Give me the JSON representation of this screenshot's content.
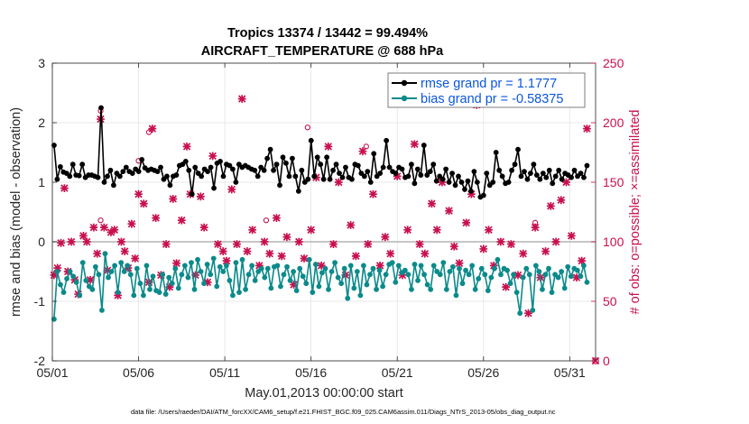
{
  "chart_data": {
    "type": "line",
    "title": "Tropics 13374 / 13442 = 99.494%",
    "subtitle": "AIRCRAFT_TEMPERATURE @ 688 hPa",
    "xlabel": "May.01,2013 00:00:00 start",
    "ylabel": "rmse and bias (model - observation)",
    "ylabel_right": "# of obs: o=possible; ×=assimilated",
    "xlim": [
      0,
      31.5
    ],
    "ylim": [
      -2,
      3
    ],
    "ylim_right": [
      0,
      250
    ],
    "x_ticks": [
      0,
      5,
      10,
      15,
      20,
      25,
      30
    ],
    "x_tick_labels": [
      "05/01",
      "05/06",
      "05/11",
      "05/16",
      "05/21",
      "05/26",
      "05/31"
    ],
    "y_ticks": [
      -2,
      -1,
      0,
      1,
      2,
      3
    ],
    "y_tick_labels": [
      "-2",
      "-1",
      "0",
      "1",
      "2",
      "3"
    ],
    "y_ticks_right": [
      0,
      50,
      100,
      150,
      200,
      250
    ],
    "y_tick_labels_right": [
      "0",
      "50",
      "100",
      "150",
      "200",
      "250"
    ],
    "zero_line": 0,
    "grid": true,
    "legend_location": "top-right",
    "footer": "data file: /Users/raeder/DAI/ATM_forcXX/CAM6_setup/f.e21.FHIST_BGC.f09_025.CAM6assim.011/Diags_NTrS_2013-05/obs_diag_output.nc",
    "colors": {
      "rmse": "#000000",
      "bias": "#0b8a8a",
      "obs": "#c8104f",
      "zero": "#b3b3b3",
      "legend_text": "#0a56e0"
    },
    "series": [
      {
        "name": "rmse grand pr = 1.1777",
        "values": [
          1.62,
          1.05,
          1.26,
          1.17,
          1.15,
          1.1,
          1.3,
          1.12,
          1.11,
          1.3,
          1.08,
          1.12,
          1.12,
          1.1,
          1.08,
          2.25,
          1.0,
          1.1,
          1.2,
          0.95,
          1.15,
          1.1,
          1.18,
          1.25,
          1.18,
          1.15,
          1.22,
          1.18,
          1.38,
          1.24,
          1.2,
          1.22,
          1.2,
          1.18,
          1.25,
          1.05,
          1.1,
          0.95,
          1.1,
          1.12,
          1.28,
          1.3,
          1.35,
          1.2,
          0.8,
          1.25,
          1.15,
          1.1,
          1.22,
          1.18,
          1.25,
          0.9,
          1.32,
          1.35,
          1.1,
          1.3,
          1.28,
          1.22,
          1.0,
          1.3,
          1.25,
          1.28,
          1.25,
          1.22,
          1.2,
          1.1,
          1.25,
          1.2,
          1.4,
          1.55,
          1.2,
          1.3,
          0.95,
          1.42,
          1.32,
          1.1,
          1.4,
          1.1,
          0.85,
          1.2,
          1.0,
          1.05,
          1.7,
          1.1,
          1.42,
          1.3,
          1.05,
          1.42,
          1.05,
          1.2,
          1.3,
          1.15,
          1.08,
          1.25,
          1.08,
          1.05,
          1.3,
          1.28,
          1.15,
          1.1,
          1.18,
          1.0,
          1.48,
          1.1,
          1.15,
          1.25,
          1.7,
          1.25,
          1.18,
          1.15,
          1.25,
          1.22,
          1.08,
          1.1,
          1.3,
          0.98,
          1.22,
          1.12,
          1.62,
          1.12,
          1.18,
          1.3,
          1.02,
          1.1,
          1.05,
          1.22,
          1.0,
          1.15,
          0.95,
          1.1,
          1.0,
          0.88,
          1.02,
          0.85,
          1.18,
          1.0,
          0.75,
          0.78,
          1.15,
          0.95,
          1.0,
          1.5,
          1.2,
          1.1,
          0.98,
          1.0,
          1.2,
          1.3,
          1.55,
          1.1,
          1.18,
          1.05,
          1.15,
          1.3,
          1.12,
          1.05,
          1.15,
          1.08,
          1.2,
          0.98,
          1.1,
          1.2,
          1.05,
          1.15,
          1.12,
          1.08,
          1.2,
          1.1,
          1.15,
          1.08,
          1.28
        ]
      },
      {
        "name": "bias grand pr = -0.58375",
        "values": [
          -1.3,
          -0.5,
          -0.72,
          -0.85,
          -0.62,
          -0.5,
          -0.58,
          -0.68,
          -0.9,
          -0.35,
          -0.65,
          -0.75,
          -0.8,
          -0.42,
          -0.55,
          -1.15,
          -0.2,
          -0.6,
          -0.5,
          -0.4,
          -0.85,
          -0.35,
          -0.5,
          -0.4,
          -0.55,
          -0.9,
          -0.45,
          -0.7,
          -0.9,
          -0.4,
          -0.8,
          -0.58,
          -0.82,
          -0.85,
          -0.55,
          -0.88,
          -0.6,
          -0.7,
          -0.45,
          -0.78,
          -0.55,
          -0.4,
          -0.6,
          -0.35,
          -0.8,
          -0.3,
          -0.5,
          -0.7,
          -0.38,
          -0.55,
          -0.28,
          -0.75,
          -0.42,
          -0.5,
          -0.4,
          -0.65,
          -0.9,
          -0.35,
          -0.85,
          -0.3,
          -0.8,
          -0.55,
          -0.4,
          -0.65,
          -0.5,
          -0.45,
          -0.6,
          -0.45,
          -0.78,
          -0.42,
          -0.4,
          -0.75,
          -0.55,
          -0.42,
          -0.65,
          -0.5,
          -0.82,
          -0.45,
          -0.58,
          -0.7,
          -0.3,
          -0.85,
          -0.38,
          -0.75,
          -0.52,
          -0.45,
          -0.8,
          -0.5,
          -0.35,
          -0.6,
          -0.7,
          -0.45,
          -0.95,
          -0.4,
          -0.78,
          -0.5,
          -0.9,
          -0.4,
          -0.72,
          -0.55,
          -0.45,
          -0.8,
          -0.48,
          -0.75,
          -0.55,
          -0.38,
          -0.35,
          -0.68,
          -0.4,
          -0.52,
          -0.48,
          -0.55,
          -0.8,
          -0.38,
          -0.65,
          -0.4,
          -0.55,
          -0.72,
          -0.8,
          -0.4,
          -0.5,
          -0.55,
          -0.35,
          -0.8,
          -0.5,
          -0.42,
          -0.9,
          -0.45,
          -0.7,
          -0.48,
          -0.55,
          -0.4,
          -0.8,
          -0.62,
          -0.45,
          -0.55,
          -0.82,
          -0.6,
          -0.45,
          -0.3,
          -0.55,
          -0.45,
          -0.48,
          -0.7,
          -0.55,
          -0.85,
          -1.2,
          -0.6,
          -0.45,
          -0.55,
          -1.15,
          -0.4,
          -0.5,
          -0.8,
          -0.55,
          -0.45,
          -0.85,
          -0.55,
          -0.6,
          -0.5,
          -0.78,
          -0.42,
          -0.58,
          -0.45,
          -0.48,
          -0.58,
          -0.4,
          -0.68
        ]
      }
    ],
    "possible_obs": [
      {
        "x": 2.8,
        "n": 210
      },
      {
        "x": 2.8,
        "n": 118
      },
      {
        "x": 5.6,
        "n": 192
      },
      {
        "x": 14.8,
        "n": 196
      },
      {
        "x": 18.2,
        "n": 180
      },
      {
        "x": 28.0,
        "n": 116
      },
      {
        "x": 5.0,
        "n": 168
      },
      {
        "x": 12.4,
        "n": 118
      }
    ],
    "assimilated_obs": [
      {
        "x": 0.1,
        "n": 72
      },
      {
        "x": 0.3,
        "n": 78
      },
      {
        "x": 0.5,
        "n": 99
      },
      {
        "x": 0.7,
        "n": 145
      },
      {
        "x": 0.9,
        "n": 75
      },
      {
        "x": 1.1,
        "n": 100
      },
      {
        "x": 1.3,
        "n": 68
      },
      {
        "x": 1.5,
        "n": 56
      },
      {
        "x": 1.8,
        "n": 105
      },
      {
        "x": 2.0,
        "n": 100
      },
      {
        "x": 2.2,
        "n": 68
      },
      {
        "x": 2.4,
        "n": 112
      },
      {
        "x": 2.6,
        "n": 90
      },
      {
        "x": 2.8,
        "n": 203
      },
      {
        "x": 3.0,
        "n": 112
      },
      {
        "x": 3.2,
        "n": 76
      },
      {
        "x": 3.4,
        "n": 108
      },
      {
        "x": 3.6,
        "n": 110
      },
      {
        "x": 3.8,
        "n": 55
      },
      {
        "x": 4.0,
        "n": 100
      },
      {
        "x": 4.2,
        "n": 92
      },
      {
        "x": 4.4,
        "n": 78
      },
      {
        "x": 4.6,
        "n": 115
      },
      {
        "x": 4.8,
        "n": 86
      },
      {
        "x": 5.0,
        "n": 140
      },
      {
        "x": 5.3,
        "n": 132
      },
      {
        "x": 5.6,
        "n": 66
      },
      {
        "x": 5.8,
        "n": 195
      },
      {
        "x": 6.0,
        "n": 120
      },
      {
        "x": 6.3,
        "n": 72
      },
      {
        "x": 6.6,
        "n": 98
      },
      {
        "x": 6.8,
        "n": 62
      },
      {
        "x": 7.0,
        "n": 136
      },
      {
        "x": 7.2,
        "n": 82
      },
      {
        "x": 7.5,
        "n": 118
      },
      {
        "x": 7.8,
        "n": 180
      },
      {
        "x": 8.0,
        "n": 140
      },
      {
        "x": 8.3,
        "n": 72
      },
      {
        "x": 8.6,
        "n": 138
      },
      {
        "x": 8.8,
        "n": 112
      },
      {
        "x": 9.0,
        "n": 66
      },
      {
        "x": 9.3,
        "n": 172
      },
      {
        "x": 9.6,
        "n": 98
      },
      {
        "x": 9.9,
        "n": 92
      },
      {
        "x": 10.1,
        "n": 84
      },
      {
        "x": 10.4,
        "n": 144
      },
      {
        "x": 10.7,
        "n": 98
      },
      {
        "x": 11.0,
        "n": 220
      },
      {
        "x": 11.3,
        "n": 92
      },
      {
        "x": 11.6,
        "n": 110
      },
      {
        "x": 12.0,
        "n": 80
      },
      {
        "x": 12.3,
        "n": 100
      },
      {
        "x": 12.6,
        "n": 90
      },
      {
        "x": 13.0,
        "n": 120
      },
      {
        "x": 13.3,
        "n": 88
      },
      {
        "x": 13.6,
        "n": 104
      },
      {
        "x": 14.0,
        "n": 64
      },
      {
        "x": 14.3,
        "n": 100
      },
      {
        "x": 14.6,
        "n": 86
      },
      {
        "x": 15.0,
        "n": 110
      },
      {
        "x": 15.3,
        "n": 154
      },
      {
        "x": 15.6,
        "n": 80
      },
      {
        "x": 16.0,
        "n": 180
      },
      {
        "x": 16.3,
        "n": 98
      },
      {
        "x": 16.6,
        "n": 150
      },
      {
        "x": 17.0,
        "n": 72
      },
      {
        "x": 17.3,
        "n": 114
      },
      {
        "x": 17.6,
        "n": 88
      },
      {
        "x": 18.0,
        "n": 176
      },
      {
        "x": 18.3,
        "n": 98
      },
      {
        "x": 18.6,
        "n": 140
      },
      {
        "x": 19.0,
        "n": 80
      },
      {
        "x": 19.3,
        "n": 104
      },
      {
        "x": 19.6,
        "n": 90
      },
      {
        "x": 20.0,
        "n": 155
      },
      {
        "x": 20.3,
        "n": 72
      },
      {
        "x": 20.6,
        "n": 110
      },
      {
        "x": 21.0,
        "n": 182
      },
      {
        "x": 21.3,
        "n": 98
      },
      {
        "x": 21.6,
        "n": 90
      },
      {
        "x": 22.0,
        "n": 132
      },
      {
        "x": 22.3,
        "n": 110
      },
      {
        "x": 22.6,
        "n": 150
      },
      {
        "x": 23.0,
        "n": 126
      },
      {
        "x": 23.3,
        "n": 96
      },
      {
        "x": 23.6,
        "n": 82
      },
      {
        "x": 24.0,
        "n": 116
      },
      {
        "x": 24.3,
        "n": 140
      },
      {
        "x": 24.6,
        "n": 215
      },
      {
        "x": 25.0,
        "n": 94
      },
      {
        "x": 25.3,
        "n": 110
      },
      {
        "x": 25.6,
        "n": 80
      },
      {
        "x": 26.0,
        "n": 100
      },
      {
        "x": 26.3,
        "n": 62
      },
      {
        "x": 26.6,
        "n": 98
      },
      {
        "x": 27.0,
        "n": 72
      },
      {
        "x": 27.3,
        "n": 90
      },
      {
        "x": 27.6,
        "n": 40
      },
      {
        "x": 28.0,
        "n": 112
      },
      {
        "x": 28.3,
        "n": 70
      },
      {
        "x": 28.6,
        "n": 92
      },
      {
        "x": 28.9,
        "n": 130
      },
      {
        "x": 29.2,
        "n": 100
      },
      {
        "x": 29.5,
        "n": 135
      },
      {
        "x": 29.8,
        "n": 150
      },
      {
        "x": 30.1,
        "n": 105
      },
      {
        "x": 30.4,
        "n": 70
      },
      {
        "x": 30.7,
        "n": 84
      },
      {
        "x": 31.0,
        "n": 195
      }
    ]
  }
}
